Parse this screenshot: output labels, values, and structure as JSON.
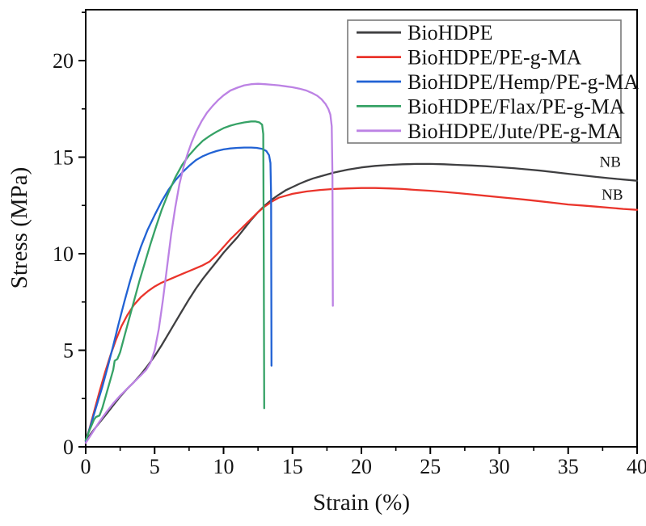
{
  "figure": {
    "description": "Stress-strain curves of BioHDPE and natural fiber composites"
  },
  "chart_data": {
    "type": "line",
    "title": "",
    "xlabel": "Strain (%)",
    "ylabel": "Stress (MPa)",
    "xlim": [
      0,
      40
    ],
    "ylim": [
      0,
      22.6
    ],
    "x_major_ticks": [
      0,
      5,
      10,
      15,
      20,
      25,
      30,
      35,
      40
    ],
    "x_minor_ticks": [
      2.5,
      7.5,
      12.5,
      17.5,
      22.5,
      27.5,
      32.5,
      37.5
    ],
    "y_major_ticks": [
      0,
      5,
      10,
      15,
      20
    ],
    "y_minor_ticks": [
      2.5,
      7.5,
      12.5,
      17.5,
      22.5
    ],
    "grid": "off",
    "legend_position": "upper-right-inside",
    "frame": "box",
    "text_color": "#141414",
    "legend_border_color": "#7a7a7a",
    "series": [
      {
        "name": "BioHDPE",
        "color": "#3f3f41",
        "behavior": "no break (NB), max ~14.65 MPa near 24% strain",
        "points": [
          [
            0,
            0.3
          ],
          [
            0.5,
            0.8
          ],
          [
            1,
            1.25
          ],
          [
            1.5,
            1.7
          ],
          [
            2,
            2.15
          ],
          [
            2.5,
            2.6
          ],
          [
            3,
            3.0
          ],
          [
            3.5,
            3.35
          ],
          [
            4,
            3.75
          ],
          [
            4.5,
            4.2
          ],
          [
            5,
            4.7
          ],
          [
            5.5,
            5.25
          ],
          [
            6,
            5.85
          ],
          [
            6.5,
            6.45
          ],
          [
            7,
            7.05
          ],
          [
            7.5,
            7.65
          ],
          [
            8,
            8.2
          ],
          [
            8.5,
            8.7
          ],
          [
            9,
            9.15
          ],
          [
            9.5,
            9.6
          ],
          [
            10,
            10.05
          ],
          [
            10.5,
            10.45
          ],
          [
            11,
            10.85
          ],
          [
            11.5,
            11.3
          ],
          [
            12,
            11.75
          ],
          [
            12.5,
            12.15
          ],
          [
            13,
            12.5
          ],
          [
            13.5,
            12.8
          ],
          [
            14,
            13.05
          ],
          [
            14.5,
            13.28
          ],
          [
            15,
            13.45
          ],
          [
            15.5,
            13.62
          ],
          [
            16,
            13.77
          ],
          [
            16.5,
            13.9
          ],
          [
            17,
            14.0
          ],
          [
            17.5,
            14.1
          ],
          [
            18,
            14.2
          ],
          [
            19,
            14.35
          ],
          [
            20,
            14.47
          ],
          [
            21,
            14.55
          ],
          [
            22,
            14.6
          ],
          [
            23,
            14.63
          ],
          [
            24,
            14.65
          ],
          [
            25,
            14.65
          ],
          [
            26,
            14.63
          ],
          [
            27,
            14.6
          ],
          [
            28,
            14.57
          ],
          [
            29,
            14.53
          ],
          [
            30,
            14.48
          ],
          [
            31,
            14.43
          ],
          [
            32,
            14.37
          ],
          [
            33,
            14.3
          ],
          [
            34,
            14.22
          ],
          [
            35,
            14.14
          ],
          [
            36,
            14.06
          ],
          [
            37,
            13.98
          ],
          [
            38,
            13.91
          ],
          [
            39,
            13.84
          ],
          [
            40,
            13.78
          ]
        ]
      },
      {
        "name": "BioHDPE/PE-g-MA",
        "color": "#ea342b",
        "behavior": "no break (NB), max ~13.4 MPa near 20% strain",
        "points": [
          [
            0,
            0.3
          ],
          [
            0.3,
            1.0
          ],
          [
            0.6,
            1.8
          ],
          [
            1,
            2.85
          ],
          [
            1.4,
            3.85
          ],
          [
            1.8,
            4.75
          ],
          [
            2.2,
            5.55
          ],
          [
            2.6,
            6.25
          ],
          [
            3,
            6.8
          ],
          [
            3.5,
            7.35
          ],
          [
            4,
            7.75
          ],
          [
            4.5,
            8.05
          ],
          [
            5,
            8.3
          ],
          [
            5.5,
            8.5
          ],
          [
            6,
            8.65
          ],
          [
            6.5,
            8.8
          ],
          [
            7,
            8.95
          ],
          [
            7.5,
            9.1
          ],
          [
            8,
            9.25
          ],
          [
            8.5,
            9.4
          ],
          [
            9,
            9.6
          ],
          [
            9.5,
            9.95
          ],
          [
            10,
            10.35
          ],
          [
            10.5,
            10.75
          ],
          [
            11,
            11.1
          ],
          [
            11.5,
            11.45
          ],
          [
            12,
            11.8
          ],
          [
            12.5,
            12.15
          ],
          [
            13,
            12.45
          ],
          [
            13.5,
            12.7
          ],
          [
            14,
            12.9
          ],
          [
            14.5,
            13.0
          ],
          [
            15,
            13.1
          ],
          [
            16,
            13.22
          ],
          [
            17,
            13.3
          ],
          [
            18,
            13.35
          ],
          [
            19,
            13.38
          ],
          [
            20,
            13.4
          ],
          [
            21,
            13.4
          ],
          [
            22,
            13.38
          ],
          [
            23,
            13.35
          ],
          [
            24,
            13.3
          ],
          [
            25,
            13.26
          ],
          [
            26,
            13.2
          ],
          [
            27,
            13.14
          ],
          [
            28,
            13.07
          ],
          [
            29,
            13.0
          ],
          [
            30,
            12.93
          ],
          [
            31,
            12.86
          ],
          [
            32,
            12.79
          ],
          [
            33,
            12.71
          ],
          [
            34,
            12.63
          ],
          [
            35,
            12.55
          ],
          [
            36,
            12.5
          ],
          [
            37,
            12.44
          ],
          [
            38,
            12.38
          ],
          [
            39,
            12.32
          ],
          [
            40,
            12.27
          ]
        ]
      },
      {
        "name": "BioHDPE/Hemp/PE-g-MA",
        "color": "#2162d4",
        "behavior": "peak ~15.5 MPa, breaks at ~13.4% strain",
        "points": [
          [
            0,
            0.3
          ],
          [
            0.4,
            1.2
          ],
          [
            0.8,
            2.15
          ],
          [
            1.2,
            3.1
          ],
          [
            1.6,
            4.15
          ],
          [
            2,
            5.25
          ],
          [
            2.4,
            6.4
          ],
          [
            2.8,
            7.5
          ],
          [
            3.2,
            8.55
          ],
          [
            3.6,
            9.5
          ],
          [
            4,
            10.35
          ],
          [
            4.5,
            11.25
          ],
          [
            5,
            12.0
          ],
          [
            5.5,
            12.7
          ],
          [
            6,
            13.3
          ],
          [
            6.5,
            13.8
          ],
          [
            7,
            14.2
          ],
          [
            7.5,
            14.55
          ],
          [
            8,
            14.85
          ],
          [
            8.5,
            15.05
          ],
          [
            9,
            15.2
          ],
          [
            9.5,
            15.32
          ],
          [
            10,
            15.4
          ],
          [
            10.5,
            15.45
          ],
          [
            11,
            15.48
          ],
          [
            11.5,
            15.5
          ],
          [
            12,
            15.5
          ],
          [
            12.4,
            15.48
          ],
          [
            12.8,
            15.43
          ],
          [
            13.1,
            15.32
          ],
          [
            13.3,
            15.1
          ],
          [
            13.4,
            14.7
          ],
          [
            13.45,
            13.0
          ],
          [
            13.48,
            4.2
          ]
        ]
      },
      {
        "name": "BioHDPE/Flax/PE-g-MA",
        "color": "#36a266",
        "behavior": "peak ~16.85 MPa, breaks at ~12.9% strain",
        "points": [
          [
            0,
            0.35
          ],
          [
            0.3,
            0.9
          ],
          [
            0.6,
            1.4
          ],
          [
            0.75,
            1.55
          ],
          [
            1.0,
            1.62
          ],
          [
            1.2,
            2.0
          ],
          [
            1.5,
            2.75
          ],
          [
            1.8,
            3.5
          ],
          [
            2.0,
            4.0
          ],
          [
            2.1,
            4.45
          ],
          [
            2.3,
            4.55
          ],
          [
            2.5,
            4.9
          ],
          [
            2.8,
            5.7
          ],
          [
            3.1,
            6.5
          ],
          [
            3.5,
            7.55
          ],
          [
            3.9,
            8.6
          ],
          [
            4.3,
            9.55
          ],
          [
            4.7,
            10.5
          ],
          [
            5.1,
            11.4
          ],
          [
            5.5,
            12.25
          ],
          [
            6,
            13.15
          ],
          [
            6.5,
            13.95
          ],
          [
            7,
            14.6
          ],
          [
            7.5,
            15.1
          ],
          [
            8,
            15.5
          ],
          [
            8.5,
            15.85
          ],
          [
            9,
            16.1
          ],
          [
            9.5,
            16.32
          ],
          [
            10,
            16.5
          ],
          [
            10.5,
            16.63
          ],
          [
            11,
            16.73
          ],
          [
            11.5,
            16.8
          ],
          [
            12,
            16.85
          ],
          [
            12.3,
            16.85
          ],
          [
            12.6,
            16.8
          ],
          [
            12.8,
            16.68
          ],
          [
            12.88,
            16.2
          ],
          [
            12.92,
            9.0
          ],
          [
            12.95,
            2.0
          ]
        ]
      },
      {
        "name": "BioHDPE/Jute/PE-g-MA",
        "color": "#bc82e4",
        "behavior": "peak ~18.8 MPa, breaks at ~17.9% strain",
        "points": [
          [
            0,
            0.2
          ],
          [
            0.5,
            0.75
          ],
          [
            1,
            1.3
          ],
          [
            1.5,
            1.8
          ],
          [
            2,
            2.25
          ],
          [
            2.5,
            2.65
          ],
          [
            3,
            3.0
          ],
          [
            3.5,
            3.35
          ],
          [
            4,
            3.7
          ],
          [
            4.4,
            4.0
          ],
          [
            4.7,
            4.35
          ],
          [
            5,
            5.0
          ],
          [
            5.3,
            6.1
          ],
          [
            5.6,
            7.6
          ],
          [
            5.9,
            9.3
          ],
          [
            6.2,
            11.0
          ],
          [
            6.5,
            12.4
          ],
          [
            6.8,
            13.6
          ],
          [
            7.1,
            14.5
          ],
          [
            7.4,
            15.2
          ],
          [
            7.7,
            15.8
          ],
          [
            8,
            16.3
          ],
          [
            8.4,
            16.85
          ],
          [
            8.8,
            17.3
          ],
          [
            9.2,
            17.65
          ],
          [
            9.6,
            17.95
          ],
          [
            10,
            18.2
          ],
          [
            10.5,
            18.45
          ],
          [
            11,
            18.6
          ],
          [
            11.5,
            18.72
          ],
          [
            12,
            18.78
          ],
          [
            12.5,
            18.8
          ],
          [
            13,
            18.78
          ],
          [
            13.5,
            18.75
          ],
          [
            14,
            18.72
          ],
          [
            14.5,
            18.67
          ],
          [
            15,
            18.62
          ],
          [
            15.5,
            18.55
          ],
          [
            16,
            18.45
          ],
          [
            16.4,
            18.33
          ],
          [
            16.8,
            18.18
          ],
          [
            17.1,
            18.0
          ],
          [
            17.4,
            17.75
          ],
          [
            17.6,
            17.5
          ],
          [
            17.75,
            17.2
          ],
          [
            17.85,
            16.6
          ],
          [
            17.9,
            14.0
          ],
          [
            17.93,
            7.3
          ]
        ]
      }
    ],
    "legend_items": [
      {
        "label": "BioHDPE",
        "color": "#3f3f41"
      },
      {
        "label": "BioHDPE/PE-g-MA",
        "color": "#ea342b"
      },
      {
        "label": "BioHDPE/Hemp/PE-g-MA",
        "color": "#2162d4"
      },
      {
        "label": "BioHDPE/Flax/PE-g-MA",
        "color": "#36a266"
      },
      {
        "label": "BioHDPE/Jute/PE-g-MA",
        "color": "#bc82e4"
      }
    ],
    "annotations": [
      {
        "text": "NB",
        "strain": 38.05,
        "stress": 14.75
      },
      {
        "text": "NB",
        "strain": 38.2,
        "stress": 13.05
      }
    ]
  }
}
